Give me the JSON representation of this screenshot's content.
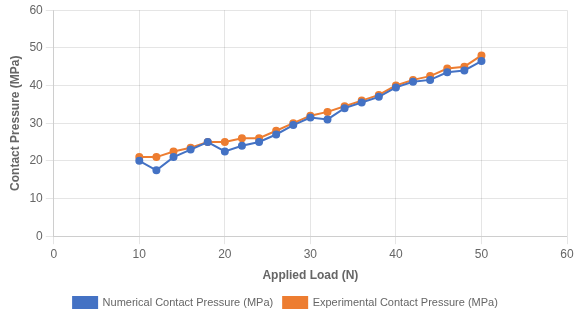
{
  "chart_data": {
    "type": "line",
    "xlabel": "Applied Load (N)",
    "ylabel": "Contact Pressure (MPa)",
    "x": [
      10,
      12,
      14,
      16,
      18,
      20,
      22,
      24,
      26,
      28,
      30,
      32,
      34,
      36,
      38,
      40,
      42,
      44,
      46,
      48,
      50
    ],
    "series": [
      {
        "name": "Numerical Contact Pressure (MPa)",
        "color": "#4472C4",
        "values": [
          20,
          17.5,
          21,
          23,
          25,
          22.5,
          24,
          25,
          27,
          29.5,
          31.5,
          31,
          34,
          35.5,
          37,
          39.5,
          41,
          41.5,
          43.5,
          44,
          46.5
        ]
      },
      {
        "name": "Experimental Contact Pressure (MPa)",
        "color": "#ED7D31",
        "values": [
          21,
          21,
          22.5,
          23.5,
          25,
          25,
          26,
          26,
          28,
          30,
          32,
          33,
          34.5,
          36,
          37.5,
          40,
          41.5,
          42.5,
          44.5,
          45,
          48
        ]
      }
    ],
    "xlim": [
      0,
      60
    ],
    "ylim": [
      0,
      60
    ],
    "xticks": [
      0,
      10,
      20,
      30,
      40,
      50,
      60
    ],
    "yticks": [
      0,
      10,
      20,
      30,
      40,
      50,
      60
    ],
    "grid": true,
    "legend": "bottom",
    "marker": "circle",
    "line_style": "solid"
  }
}
